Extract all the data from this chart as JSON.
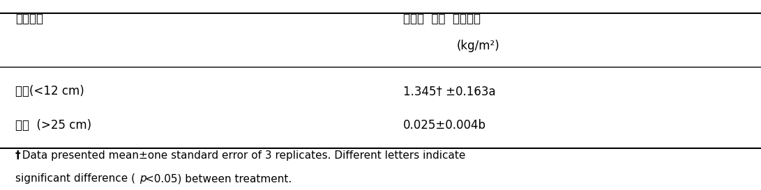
{
  "col1_header": "경운방법",
  "col2_header_line1": "강우에  의한  토양유실",
  "col2_header_line2": "(kg/m²)",
  "row1_col1": "천경(<12 cm)",
  "row1_col2": "1.345† ±0.163a",
  "row2_col1": "심경  (>25 cm)",
  "row2_col2": "0.025±0.004b",
  "footnote_dagger": "†",
  "footnote_text": "  Data presented mean±one standard error of 3 replicates. Different letters indicate\nsignificant difference (",
  "footnote_italic": "p",
  "footnote_end": "<0.05) between treatment.",
  "font_size": 12,
  "footnote_size": 11,
  "header_color": "#000000",
  "bg_color": "#ffffff"
}
